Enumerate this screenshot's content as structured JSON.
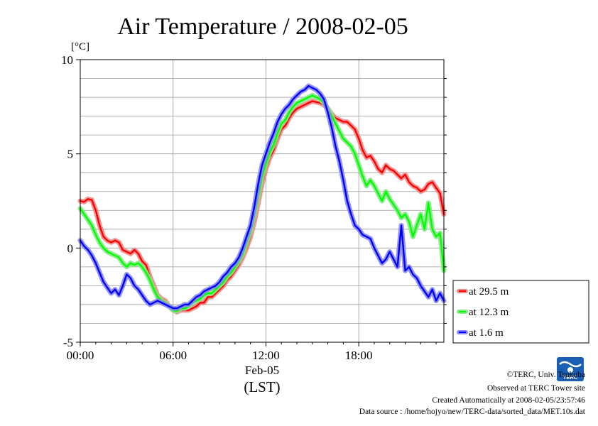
{
  "chart_data": {
    "type": "line",
    "title": "Air Temperature / 2008-02-05",
    "ylabel": "[°C]",
    "xlabel": "(LST)",
    "x_date_label": "Feb-05",
    "x_range_hours": [
      0,
      23.5
    ],
    "ylim": [
      -5,
      10
    ],
    "y_ticks": [
      -5,
      0,
      5,
      10
    ],
    "y_tick_labels": [
      "-5",
      "0",
      "5",
      "10"
    ],
    "x_ticks_hours": [
      0,
      6,
      12,
      18
    ],
    "x_tick_labels": [
      "00:00",
      "06:00",
      "12:00",
      "18:00"
    ],
    "minor_grid_step": 1,
    "grid": true,
    "legend_position": "right",
    "series": [
      {
        "name": "at 29.5 m",
        "color": "#ff0000",
        "halo": "#f08a8a",
        "points": [
          [
            0.0,
            2.5
          ],
          [
            0.25,
            2.45
          ],
          [
            0.5,
            2.6
          ],
          [
            0.75,
            2.55
          ],
          [
            1.0,
            2.0
          ],
          [
            1.25,
            1.2
          ],
          [
            1.5,
            0.6
          ],
          [
            1.75,
            0.4
          ],
          [
            2.0,
            0.3
          ],
          [
            2.25,
            0.4
          ],
          [
            2.5,
            0.3
          ],
          [
            2.75,
            -0.1
          ],
          [
            3.0,
            -0.2
          ],
          [
            3.25,
            -0.3
          ],
          [
            3.5,
            -0.1
          ],
          [
            3.75,
            -0.3
          ],
          [
            4.0,
            -0.7
          ],
          [
            4.25,
            -0.9
          ],
          [
            4.5,
            -1.5
          ],
          [
            4.75,
            -2.0
          ],
          [
            5.0,
            -2.5
          ],
          [
            5.25,
            -2.7
          ],
          [
            5.5,
            -2.8
          ],
          [
            5.75,
            -3.1
          ],
          [
            6.0,
            -3.3
          ],
          [
            6.25,
            -3.4
          ],
          [
            6.5,
            -3.3
          ],
          [
            6.75,
            -3.3
          ],
          [
            7.0,
            -3.3
          ],
          [
            7.25,
            -3.2
          ],
          [
            7.5,
            -3.1
          ],
          [
            7.75,
            -2.9
          ],
          [
            8.0,
            -2.9
          ],
          [
            8.25,
            -2.6
          ],
          [
            8.5,
            -2.6
          ],
          [
            8.75,
            -2.4
          ],
          [
            9.0,
            -2.2
          ],
          [
            9.25,
            -2.0
          ],
          [
            9.5,
            -1.7
          ],
          [
            9.75,
            -1.5
          ],
          [
            10.0,
            -1.2
          ],
          [
            10.25,
            -0.9
          ],
          [
            10.5,
            -0.5
          ],
          [
            10.75,
            0.0
          ],
          [
            11.0,
            0.6
          ],
          [
            11.25,
            1.4
          ],
          [
            11.5,
            2.4
          ],
          [
            11.75,
            3.4
          ],
          [
            12.0,
            4.2
          ],
          [
            12.25,
            4.8
          ],
          [
            12.5,
            5.2
          ],
          [
            12.75,
            5.8
          ],
          [
            13.0,
            6.3
          ],
          [
            13.25,
            6.5
          ],
          [
            13.5,
            6.9
          ],
          [
            13.75,
            7.2
          ],
          [
            14.0,
            7.4
          ],
          [
            14.25,
            7.5
          ],
          [
            14.5,
            7.6
          ],
          [
            14.75,
            7.7
          ],
          [
            15.0,
            7.8
          ],
          [
            15.25,
            7.75
          ],
          [
            15.5,
            7.7
          ],
          [
            15.75,
            7.6
          ],
          [
            16.0,
            7.4
          ],
          [
            16.25,
            7.1
          ],
          [
            16.5,
            6.9
          ],
          [
            16.75,
            6.8
          ],
          [
            17.0,
            6.7
          ],
          [
            17.25,
            6.7
          ],
          [
            17.5,
            6.5
          ],
          [
            17.75,
            6.3
          ],
          [
            18.0,
            5.8
          ],
          [
            18.25,
            5.2
          ],
          [
            18.5,
            4.8
          ],
          [
            18.75,
            4.9
          ],
          [
            19.0,
            4.6
          ],
          [
            19.25,
            4.2
          ],
          [
            19.5,
            4.0
          ],
          [
            19.75,
            4.4
          ],
          [
            20.0,
            4.2
          ],
          [
            20.25,
            4.1
          ],
          [
            20.5,
            3.9
          ],
          [
            20.75,
            3.7
          ],
          [
            21.0,
            3.9
          ],
          [
            21.25,
            3.5
          ],
          [
            21.5,
            3.3
          ],
          [
            21.75,
            3.2
          ],
          [
            22.0,
            3.0
          ],
          [
            22.25,
            3.1
          ],
          [
            22.5,
            3.4
          ],
          [
            22.75,
            3.5
          ],
          [
            23.0,
            3.2
          ],
          [
            23.25,
            2.9
          ],
          [
            23.5,
            1.8
          ]
        ]
      },
      {
        "name": "at 12.3 m",
        "color": "#00ff00",
        "halo": "#88e888",
        "points": [
          [
            0.0,
            2.1
          ],
          [
            0.25,
            1.8
          ],
          [
            0.5,
            1.5
          ],
          [
            0.75,
            1.2
          ],
          [
            1.0,
            0.7
          ],
          [
            1.25,
            0.3
          ],
          [
            1.5,
            0.0
          ],
          [
            1.75,
            -0.2
          ],
          [
            2.0,
            -0.3
          ],
          [
            2.25,
            -0.4
          ],
          [
            2.5,
            -0.5
          ],
          [
            2.75,
            -0.8
          ],
          [
            3.0,
            -1.0
          ],
          [
            3.25,
            -0.8
          ],
          [
            3.5,
            -0.9
          ],
          [
            3.75,
            -0.8
          ],
          [
            4.0,
            -1.0
          ],
          [
            4.25,
            -1.3
          ],
          [
            4.5,
            -1.7
          ],
          [
            4.75,
            -2.2
          ],
          [
            5.0,
            -2.6
          ],
          [
            5.25,
            -2.8
          ],
          [
            5.5,
            -2.9
          ],
          [
            5.75,
            -3.1
          ],
          [
            6.0,
            -3.3
          ],
          [
            6.25,
            -3.35
          ],
          [
            6.5,
            -3.2
          ],
          [
            6.75,
            -3.2
          ],
          [
            7.0,
            -3.1
          ],
          [
            7.25,
            -2.9
          ],
          [
            7.5,
            -2.8
          ],
          [
            7.75,
            -2.7
          ],
          [
            8.0,
            -2.5
          ],
          [
            8.25,
            -2.4
          ],
          [
            8.5,
            -2.4
          ],
          [
            8.75,
            -2.2
          ],
          [
            9.0,
            -2.0
          ],
          [
            9.25,
            -1.8
          ],
          [
            9.5,
            -1.5
          ],
          [
            9.75,
            -1.3
          ],
          [
            10.0,
            -1.0
          ],
          [
            10.25,
            -0.7
          ],
          [
            10.5,
            -0.3
          ],
          [
            10.75,
            0.3
          ],
          [
            11.0,
            0.9
          ],
          [
            11.25,
            1.8
          ],
          [
            11.5,
            2.8
          ],
          [
            11.75,
            3.8
          ],
          [
            12.0,
            4.5
          ],
          [
            12.25,
            5.1
          ],
          [
            12.5,
            5.5
          ],
          [
            12.75,
            6.1
          ],
          [
            13.0,
            6.6
          ],
          [
            13.25,
            6.8
          ],
          [
            13.5,
            7.2
          ],
          [
            13.75,
            7.5
          ],
          [
            14.0,
            7.7
          ],
          [
            14.25,
            7.8
          ],
          [
            14.5,
            7.9
          ],
          [
            14.75,
            8.0
          ],
          [
            15.0,
            8.1
          ],
          [
            15.25,
            8.0
          ],
          [
            15.5,
            7.9
          ],
          [
            15.75,
            7.7
          ],
          [
            16.0,
            7.4
          ],
          [
            16.25,
            7.0
          ],
          [
            16.5,
            6.6
          ],
          [
            16.75,
            6.2
          ],
          [
            17.0,
            5.8
          ],
          [
            17.25,
            5.6
          ],
          [
            17.5,
            5.4
          ],
          [
            17.75,
            5.0
          ],
          [
            18.0,
            4.4
          ],
          [
            18.25,
            3.8
          ],
          [
            18.5,
            3.3
          ],
          [
            18.75,
            3.6
          ],
          [
            19.0,
            3.3
          ],
          [
            19.25,
            2.9
          ],
          [
            19.5,
            2.5
          ],
          [
            19.75,
            3.0
          ],
          [
            20.0,
            2.6
          ],
          [
            20.25,
            2.3
          ],
          [
            20.5,
            2.0
          ],
          [
            20.75,
            1.6
          ],
          [
            21.0,
            1.8
          ],
          [
            21.25,
            1.4
          ],
          [
            21.5,
            0.6
          ],
          [
            21.75,
            1.2
          ],
          [
            22.0,
            1.8
          ],
          [
            22.25,
            1.0
          ],
          [
            22.5,
            2.4
          ],
          [
            22.75,
            1.0
          ],
          [
            23.0,
            0.6
          ],
          [
            23.25,
            0.8
          ],
          [
            23.5,
            -1.2
          ]
        ]
      },
      {
        "name": "at 1.6 m",
        "color": "#0000ff",
        "halo": "#8a8af0",
        "points": [
          [
            0.0,
            0.4
          ],
          [
            0.25,
            0.1
          ],
          [
            0.5,
            -0.1
          ],
          [
            0.75,
            -0.4
          ],
          [
            1.0,
            -0.8
          ],
          [
            1.25,
            -1.3
          ],
          [
            1.5,
            -1.8
          ],
          [
            1.75,
            -2.1
          ],
          [
            2.0,
            -2.4
          ],
          [
            2.25,
            -2.2
          ],
          [
            2.5,
            -2.5
          ],
          [
            2.75,
            -2.0
          ],
          [
            3.0,
            -1.4
          ],
          [
            3.25,
            -1.6
          ],
          [
            3.5,
            -2.0
          ],
          [
            3.75,
            -2.2
          ],
          [
            4.0,
            -2.5
          ],
          [
            4.25,
            -2.8
          ],
          [
            4.5,
            -3.0
          ],
          [
            4.75,
            -2.9
          ],
          [
            5.0,
            -2.8
          ],
          [
            5.25,
            -2.9
          ],
          [
            5.5,
            -3.0
          ],
          [
            5.75,
            -3.1
          ],
          [
            6.0,
            -3.2
          ],
          [
            6.25,
            -3.2
          ],
          [
            6.5,
            -3.1
          ],
          [
            6.75,
            -3.0
          ],
          [
            7.0,
            -3.0
          ],
          [
            7.25,
            -2.8
          ],
          [
            7.5,
            -2.6
          ],
          [
            7.75,
            -2.5
          ],
          [
            8.0,
            -2.3
          ],
          [
            8.25,
            -2.2
          ],
          [
            8.5,
            -2.1
          ],
          [
            8.75,
            -2.0
          ],
          [
            9.0,
            -1.8
          ],
          [
            9.25,
            -1.5
          ],
          [
            9.5,
            -1.3
          ],
          [
            9.75,
            -1.0
          ],
          [
            10.0,
            -0.8
          ],
          [
            10.25,
            -0.5
          ],
          [
            10.5,
            0.0
          ],
          [
            10.75,
            0.6
          ],
          [
            11.0,
            1.2
          ],
          [
            11.25,
            2.2
          ],
          [
            11.5,
            3.4
          ],
          [
            11.75,
            4.4
          ],
          [
            12.0,
            5.0
          ],
          [
            12.25,
            5.6
          ],
          [
            12.5,
            6.1
          ],
          [
            12.75,
            6.7
          ],
          [
            13.0,
            7.1
          ],
          [
            13.25,
            7.4
          ],
          [
            13.5,
            7.6
          ],
          [
            13.75,
            7.9
          ],
          [
            14.0,
            8.1
          ],
          [
            14.25,
            8.3
          ],
          [
            14.5,
            8.4
          ],
          [
            14.75,
            8.6
          ],
          [
            15.0,
            8.5
          ],
          [
            15.25,
            8.4
          ],
          [
            15.5,
            8.2
          ],
          [
            15.75,
            7.9
          ],
          [
            16.0,
            7.2
          ],
          [
            16.25,
            6.4
          ],
          [
            16.5,
            5.4
          ],
          [
            16.75,
            4.6
          ],
          [
            17.0,
            3.6
          ],
          [
            17.25,
            2.5
          ],
          [
            17.5,
            1.8
          ],
          [
            17.75,
            1.2
          ],
          [
            18.0,
            1.0
          ],
          [
            18.25,
            0.7
          ],
          [
            18.5,
            0.6
          ],
          [
            18.75,
            0.5
          ],
          [
            19.0,
            0.0
          ],
          [
            19.25,
            -0.4
          ],
          [
            19.5,
            -0.8
          ],
          [
            19.75,
            -0.6
          ],
          [
            20.0,
            -0.2
          ],
          [
            20.25,
            -0.6
          ],
          [
            20.5,
            -1.0
          ],
          [
            20.75,
            1.2
          ],
          [
            21.0,
            -1.2
          ],
          [
            21.25,
            -1.0
          ],
          [
            21.5,
            -1.4
          ],
          [
            21.75,
            -1.6
          ],
          [
            22.0,
            -2.0
          ],
          [
            22.25,
            -2.3
          ],
          [
            22.5,
            -2.6
          ],
          [
            22.75,
            -2.2
          ],
          [
            23.0,
            -2.8
          ],
          [
            23.25,
            -2.4
          ],
          [
            23.5,
            -2.8
          ]
        ]
      }
    ]
  },
  "footer": {
    "copyright": "©TERC, Univ. Tsukuba",
    "observed": "Observed at TERC Tower site",
    "created": "Created Automatically at 2008-02-05/23:57:46",
    "source": "Data source : /home/hojyo/new/TERC-data/sorted_data/MET.10s.dat",
    "logo_text": "TERC",
    "logo_color": "#1a5fb4"
  }
}
